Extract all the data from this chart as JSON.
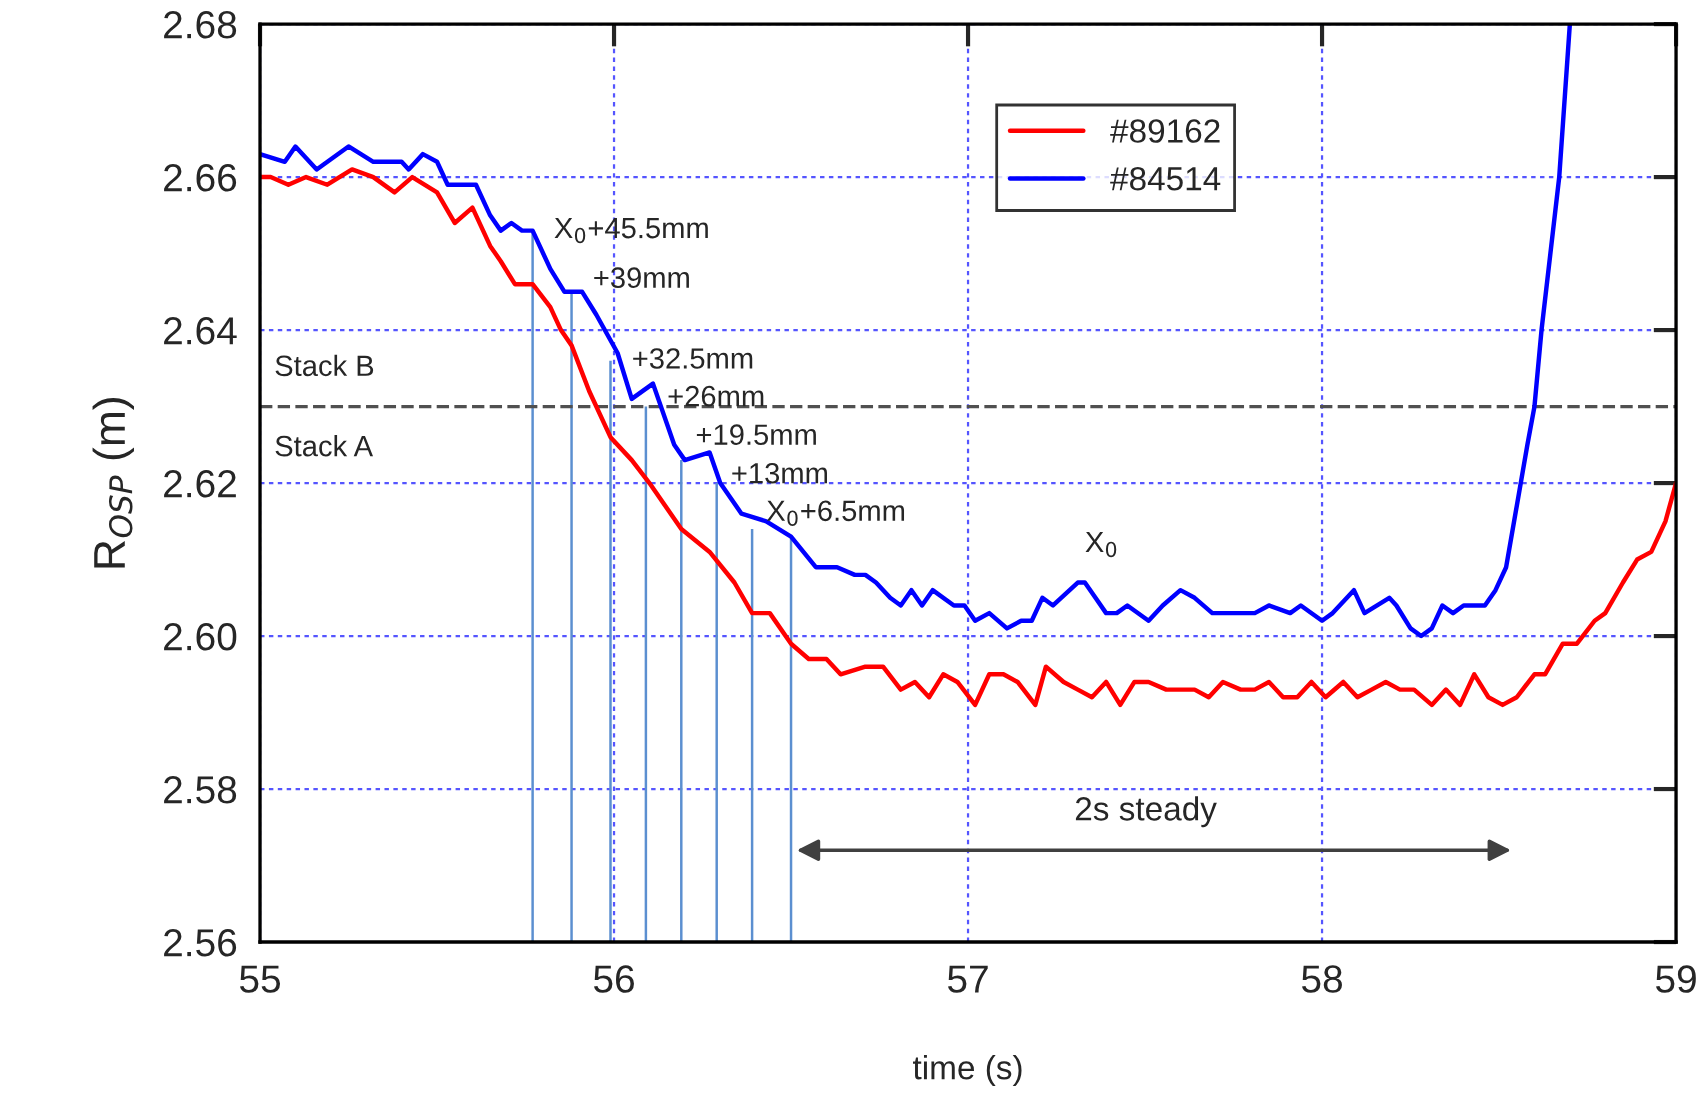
{
  "chart_data": {
    "type": "line",
    "xlabel": "time (s)",
    "ylabel": "R$_{OSP}$ (m)",
    "xlim": [
      55,
      59
    ],
    "ylim": [
      2.56,
      2.68
    ],
    "xticks": [
      55,
      56,
      57,
      58,
      59
    ],
    "yticks": [
      2.56,
      2.58,
      {
        "value": 2.6,
        "label": "2.60"
      },
      2.62,
      2.64,
      2.66,
      2.68
    ],
    "grid": true,
    "legend": "top right",
    "marker": "none",
    "line_style": "solid",
    "series": [
      {
        "name": "#89162",
        "color": "#ff0000",
        "x": [
          55.0,
          55.03,
          55.08,
          55.13,
          55.19,
          55.26,
          55.32,
          55.38,
          55.43,
          55.5,
          55.55,
          55.6,
          55.65,
          55.68,
          55.72,
          55.77,
          55.82,
          55.85,
          55.88,
          55.93,
          55.99,
          56.05,
          56.1,
          56.19,
          56.27,
          56.34,
          56.39,
          56.44,
          56.5,
          56.55,
          56.6,
          56.64,
          56.71,
          56.76,
          56.81,
          56.85,
          56.89,
          56.93,
          56.97,
          57.02,
          57.06,
          57.1,
          57.14,
          57.19,
          57.22,
          57.27,
          57.31,
          57.35,
          57.39,
          57.43,
          57.47,
          57.51,
          57.56,
          57.6,
          57.64,
          57.68,
          57.72,
          57.77,
          57.81,
          57.85,
          57.89,
          57.93,
          57.97,
          58.01,
          58.06,
          58.1,
          58.14,
          58.18,
          58.22,
          58.26,
          58.31,
          58.35,
          58.39,
          58.43,
          58.47,
          58.51,
          58.55,
          58.6,
          58.63,
          58.68,
          58.72,
          58.77,
          58.8,
          58.85,
          58.89,
          58.93,
          58.97,
          59.0
        ],
        "values": [
          2.66,
          2.66,
          2.659,
          2.66,
          2.659,
          2.661,
          2.66,
          2.658,
          2.66,
          2.658,
          2.654,
          2.656,
          2.651,
          2.649,
          2.646,
          2.646,
          2.643,
          2.64,
          2.638,
          2.632,
          2.626,
          2.623,
          2.62,
          2.614,
          2.611,
          2.607,
          2.603,
          2.603,
          2.599,
          2.597,
          2.597,
          2.595,
          2.596,
          2.596,
          2.593,
          2.594,
          2.592,
          2.595,
          2.594,
          2.591,
          2.595,
          2.595,
          2.594,
          2.591,
          2.596,
          2.594,
          2.593,
          2.592,
          2.594,
          2.591,
          2.594,
          2.594,
          2.593,
          2.593,
          2.593,
          2.592,
          2.594,
          2.593,
          2.593,
          2.594,
          2.592,
          2.592,
          2.594,
          2.592,
          2.594,
          2.592,
          2.593,
          2.594,
          2.593,
          2.593,
          2.591,
          2.593,
          2.591,
          2.595,
          2.592,
          2.591,
          2.592,
          2.595,
          2.595,
          2.599,
          2.599,
          2.602,
          2.603,
          2.607,
          2.61,
          2.611,
          2.615,
          2.62
        ]
      },
      {
        "name": "#84514",
        "color": "#0000ff",
        "x": [
          55.0,
          55.07,
          55.1,
          55.16,
          55.25,
          55.32,
          55.4,
          55.42,
          55.46,
          55.5,
          55.53,
          55.59,
          55.61,
          55.65,
          55.68,
          55.71,
          55.74,
          55.77,
          55.82,
          55.86,
          55.91,
          55.95,
          56.01,
          56.05,
          56.11,
          56.17,
          56.2,
          56.27,
          56.3,
          56.36,
          56.43,
          56.5,
          56.57,
          56.63,
          56.68,
          56.71,
          56.74,
          56.78,
          56.81,
          56.84,
          56.87,
          56.9,
          56.96,
          56.99,
          57.02,
          57.06,
          57.11,
          57.15,
          57.18,
          57.21,
          57.24,
          57.31,
          57.33,
          57.36,
          57.39,
          57.42,
          57.45,
          57.51,
          57.55,
          57.6,
          57.64,
          57.69,
          57.72,
          57.77,
          57.81,
          57.85,
          57.91,
          57.94,
          58.0,
          58.03,
          58.09,
          58.12,
          58.19,
          58.21,
          58.25,
          58.28,
          58.31,
          58.34,
          58.37,
          58.4,
          58.46,
          58.49,
          58.52,
          58.55,
          58.58,
          58.6,
          58.62,
          58.67,
          58.7
        ],
        "values": [
          2.663,
          2.662,
          2.664,
          2.661,
          2.664,
          2.662,
          2.662,
          2.661,
          2.663,
          2.662,
          2.659,
          2.659,
          2.659,
          2.655,
          2.653,
          2.654,
          2.653,
          2.653,
          2.648,
          2.645,
          2.645,
          2.642,
          2.637,
          2.631,
          2.633,
          2.625,
          2.623,
          2.624,
          2.62,
          2.616,
          2.615,
          2.613,
          2.609,
          2.609,
          2.608,
          2.608,
          2.607,
          2.605,
          2.604,
          2.606,
          2.604,
          2.606,
          2.604,
          2.604,
          2.602,
          2.603,
          2.601,
          2.602,
          2.602,
          2.605,
          2.604,
          2.607,
          2.607,
          2.605,
          2.603,
          2.603,
          2.604,
          2.602,
          2.604,
          2.606,
          2.605,
          2.603,
          2.603,
          2.603,
          2.603,
          2.604,
          2.603,
          2.604,
          2.602,
          2.603,
          2.606,
          2.603,
          2.605,
          2.604,
          2.601,
          2.6,
          2.601,
          2.604,
          2.603,
          2.604,
          2.604,
          2.606,
          2.609,
          2.617,
          2.625,
          2.63,
          2.64,
          2.66,
          2.68
        ]
      },
      {
        "type": "bar",
        "color": "#5b8fd0",
        "x": [
          55.77,
          55.88,
          55.99,
          56.09,
          56.19,
          56.29,
          56.39,
          56.5
        ],
        "values": [
          2.653,
          2.645,
          2.636,
          2.63,
          2.623,
          2.62,
          2.614,
          2.613
        ]
      }
    ],
    "ref_lines": [
      {
        "axis": "y",
        "value": 2.63,
        "color": "#505050",
        "line_style": "dashed"
      }
    ],
    "annotations": [
      "X$_{0}$+45.5mm",
      "+39mm",
      "+32.5mm",
      "+26mm",
      "+19.5mm",
      "+13mm",
      "X$_{0}$+6.5mm",
      "X$_{0}$",
      "Stack B",
      "Stack A",
      "2s steady"
    ]
  }
}
